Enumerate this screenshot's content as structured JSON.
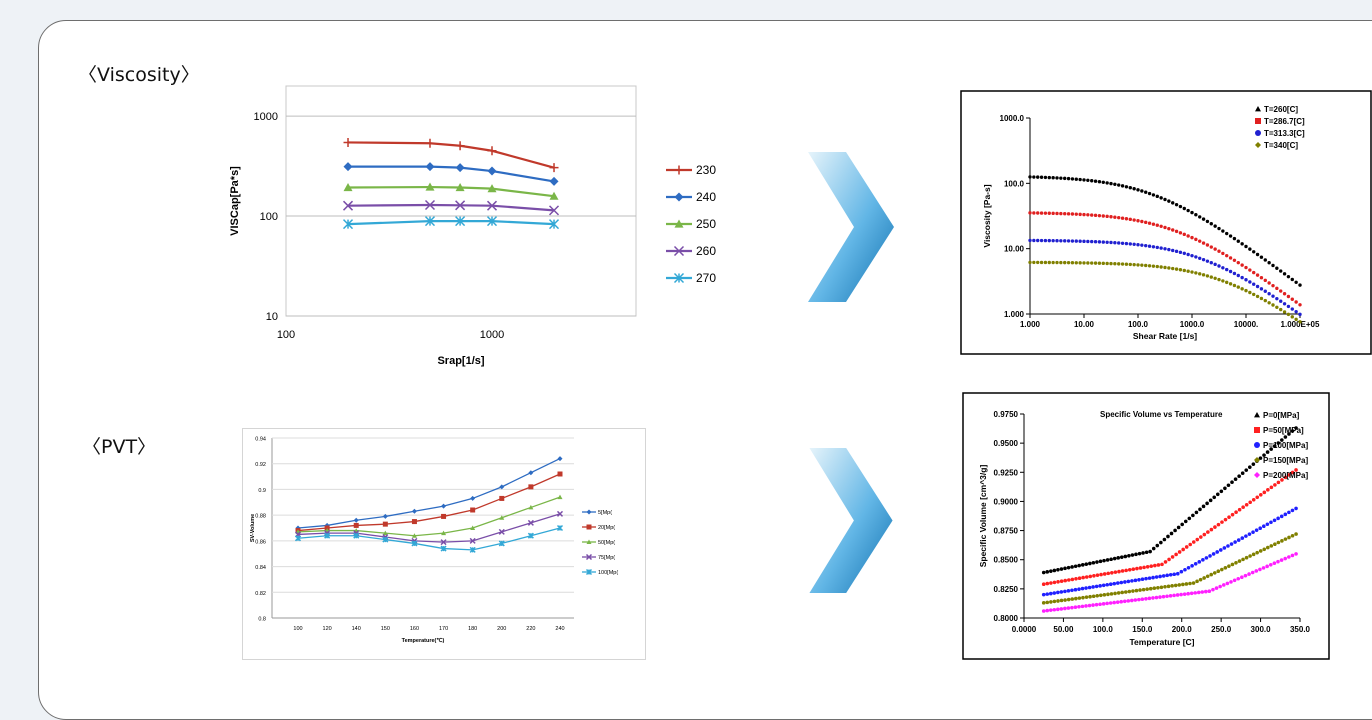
{
  "sections": {
    "viscosity": "〈Viscosity〉",
    "pvt": "〈PVT〉"
  },
  "chart_data": [
    {
      "id": "visc-excel",
      "type": "line",
      "title": "",
      "xlabel": "Srap[1/s]",
      "ylabel": "VISCap[Pa*s]",
      "x_scale": "log",
      "y_scale": "log",
      "xlim": [
        100,
        5000
      ],
      "ylim": [
        10,
        2000
      ],
      "x_ticks": [
        100,
        1000
      ],
      "x_tick_labels": [
        "100",
        "1000"
      ],
      "y_ticks": [
        10,
        100,
        1000
      ],
      "y_tick_labels": [
        "10",
        "100",
        "1000"
      ],
      "legend_position": "right",
      "x": [
        200,
        500,
        700,
        1000,
        2000
      ],
      "series": [
        {
          "name": "230",
          "color": "#c0392b",
          "marker": "plus",
          "values": [
            545,
            535,
            505,
            450,
            305
          ]
        },
        {
          "name": "240",
          "color": "#2e6cc2",
          "marker": "diamond",
          "values": [
            312,
            312,
            305,
            282,
            222
          ]
        },
        {
          "name": "250",
          "color": "#7ab648",
          "marker": "triangle",
          "values": [
            193,
            195,
            193,
            188,
            158
          ]
        },
        {
          "name": "260",
          "color": "#7a4ea8",
          "marker": "x",
          "values": [
            127,
            129,
            128,
            127,
            114
          ]
        },
        {
          "name": "270",
          "color": "#33a8d6",
          "marker": "star",
          "values": [
            83,
            89,
            89,
            89,
            83
          ]
        }
      ]
    },
    {
      "id": "visc-moldflow",
      "type": "line",
      "title": "",
      "xlabel": "Shear Rate [1/s]",
      "ylabel": "Viscosity [Pa-s]",
      "x_scale": "log",
      "y_scale": "log",
      "xlim": [
        1,
        100000
      ],
      "ylim": [
        1,
        1000
      ],
      "x_ticks": [
        1,
        10,
        100,
        1000,
        10000,
        100000
      ],
      "x_tick_labels": [
        "1.000",
        "10.00",
        "100.0",
        "1000.0",
        "10000.",
        "1.000E+05"
      ],
      "y_ticks": [
        1,
        10,
        100,
        1000
      ],
      "y_tick_labels": [
        "1.000",
        "10.00",
        "100.0",
        "1000.0"
      ],
      "legend_position": "top-right",
      "series": [
        {
          "name": "T=260[C]",
          "color": "#000000",
          "marker": "triangle",
          "eta0": 130,
          "ratio": 0.012
        },
        {
          "name": "T=286.7[C]",
          "color": "#e02020",
          "marker": "square",
          "eta0": 36,
          "ratio": 0.0045
        },
        {
          "name": "T=313.3[C]",
          "color": "#2020d0",
          "marker": "circle",
          "eta0": 13.5,
          "ratio": 0.0015
        },
        {
          "name": "T=340[C]",
          "color": "#808000",
          "marker": "diamond",
          "eta0": 6.2,
          "ratio": 0.0006
        }
      ]
    },
    {
      "id": "pvt-excel",
      "type": "line",
      "title": "",
      "xlabel": "Temperature(℃)",
      "ylabel": "SV-Volume",
      "ylim": [
        0.8,
        0.94
      ],
      "y_ticks": [
        0.8,
        0.82,
        0.84,
        0.86,
        0.88,
        0.9,
        0.92,
        0.94
      ],
      "y_tick_labels": [
        "0.8",
        "0.82",
        "0.84",
        "0.86",
        "0.88",
        "0.9",
        "0.92",
        "0.94"
      ],
      "categories": [
        "100",
        "120",
        "140",
        "150",
        "160",
        "170",
        "180",
        "200",
        "220",
        "240"
      ],
      "legend_position": "right",
      "series": [
        {
          "name": "5[Mp(",
          "color": "#2e6cc2",
          "marker": "diamond",
          "values": [
            0.87,
            0.872,
            0.876,
            0.879,
            0.883,
            0.887,
            0.893,
            0.902,
            0.913,
            0.924
          ]
        },
        {
          "name": "20[Mp(",
          "color": "#c0392b",
          "marker": "square",
          "values": [
            0.868,
            0.87,
            0.872,
            0.873,
            0.875,
            0.879,
            0.884,
            0.893,
            0.902,
            0.912
          ]
        },
        {
          "name": "50[Mp(",
          "color": "#7ab648",
          "marker": "triangle",
          "values": [
            0.867,
            0.868,
            0.868,
            0.866,
            0.864,
            0.866,
            0.87,
            0.878,
            0.886,
            0.894
          ]
        },
        {
          "name": "75[Mp(",
          "color": "#7a4ea8",
          "marker": "x",
          "values": [
            0.865,
            0.866,
            0.866,
            0.863,
            0.86,
            0.859,
            0.86,
            0.867,
            0.874,
            0.881
          ]
        },
        {
          "name": "100[Mp(",
          "color": "#33a8d6",
          "marker": "star",
          "values": [
            0.862,
            0.864,
            0.864,
            0.861,
            0.858,
            0.854,
            0.853,
            0.858,
            0.864,
            0.87
          ]
        }
      ]
    },
    {
      "id": "pvt-moldflow",
      "type": "line",
      "title": "Specific Volume vs Temperature",
      "xlabel": "Temperature [C]",
      "ylabel": "Specific Volume [cm^3/g]",
      "xlim": [
        0,
        350
      ],
      "ylim": [
        0.8,
        0.975
      ],
      "x_ticks": [
        0,
        50,
        100,
        150,
        200,
        250,
        300,
        350
      ],
      "x_tick_labels": [
        "0.0000",
        "50.00",
        "100.0",
        "150.0",
        "200.0",
        "250.0",
        "300.0",
        "350.0"
      ],
      "y_ticks": [
        0.8,
        0.825,
        0.85,
        0.875,
        0.9,
        0.925,
        0.95,
        0.975
      ],
      "y_tick_labels": [
        "0.8000",
        "0.8250",
        "0.8500",
        "0.8750",
        "0.9000",
        "0.9250",
        "0.9500",
        "0.9750"
      ],
      "legend_position": "top-right",
      "series": [
        {
          "name": "P=0[MPa]",
          "color": "#000000",
          "marker": "triangle",
          "x": [
            25,
            160,
            345
          ],
          "values": [
            0.839,
            0.857,
            0.963
          ]
        },
        {
          "name": "P=50[MPa]",
          "color": "#ff2020",
          "marker": "square",
          "x": [
            25,
            175,
            345
          ],
          "values": [
            0.829,
            0.846,
            0.927
          ]
        },
        {
          "name": "P=100[MPa]",
          "color": "#2020ff",
          "marker": "circle",
          "x": [
            25,
            195,
            345
          ],
          "values": [
            0.82,
            0.838,
            0.894
          ]
        },
        {
          "name": "P=150[MPa]",
          "color": "#808000",
          "marker": "diamond",
          "x": [
            25,
            215,
            345
          ],
          "values": [
            0.813,
            0.83,
            0.872
          ]
        },
        {
          "name": "P=200[MPa]",
          "color": "#ff20ff",
          "marker": "diamond",
          "x": [
            25,
            235,
            345
          ],
          "values": [
            0.806,
            0.823,
            0.855
          ]
        }
      ]
    }
  ],
  "arrows": {
    "color_light": "#d9eef8",
    "color_dark": "#1e7fc0"
  }
}
